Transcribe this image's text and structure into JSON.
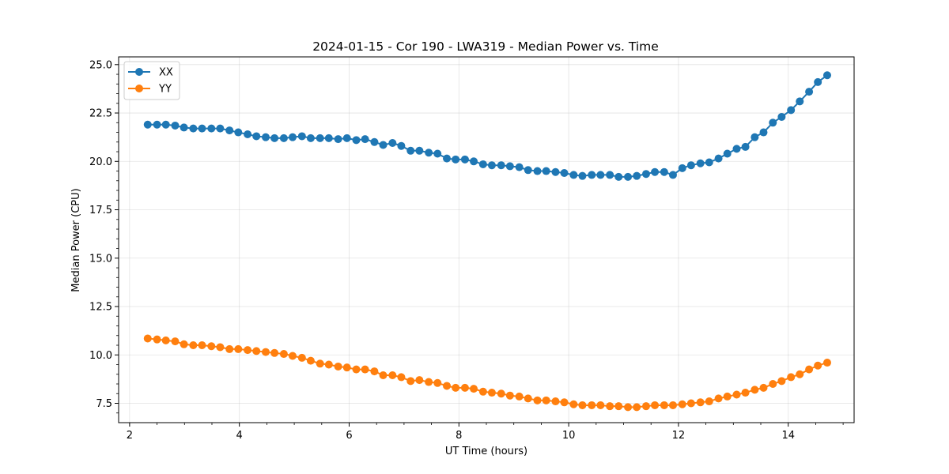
{
  "chart_data": {
    "type": "line",
    "title": "2024-01-15 - Cor 190 - LWA319 - Median Power vs. Time",
    "xlabel": "UT Time (hours)",
    "ylabel": "Median Power (CPU)",
    "xlim": [
      1.8,
      15.2
    ],
    "ylim": [
      6.5,
      25.4
    ],
    "xticks": [
      2,
      4,
      6,
      8,
      10,
      12,
      14
    ],
    "yticks": [
      7.5,
      10.0,
      12.5,
      15.0,
      17.5,
      20.0,
      22.5,
      25.0
    ],
    "xtick_labels": [
      "2",
      "4",
      "6",
      "8",
      "10",
      "12",
      "14"
    ],
    "ytick_labels": [
      "7.5",
      "10.0",
      "12.5",
      "15.0",
      "17.5",
      "20.0",
      "22.5",
      "25.0"
    ],
    "grid": true,
    "legend_position": "upper-left",
    "x": [
      2.33,
      2.5,
      2.66,
      2.83,
      2.99,
      3.16,
      3.32,
      3.49,
      3.65,
      3.82,
      3.98,
      4.15,
      4.31,
      4.48,
      4.64,
      4.81,
      4.97,
      5.14,
      5.3,
      5.47,
      5.63,
      5.8,
      5.96,
      6.13,
      6.29,
      6.46,
      6.62,
      6.79,
      6.95,
      7.12,
      7.28,
      7.45,
      7.61,
      7.78,
      7.94,
      8.11,
      8.27,
      8.44,
      8.6,
      8.77,
      8.93,
      9.1,
      9.26,
      9.43,
      9.59,
      9.76,
      9.92,
      10.09,
      10.25,
      10.42,
      10.58,
      10.75,
      10.91,
      11.08,
      11.24,
      11.41,
      11.57,
      11.74,
      11.9,
      12.07,
      12.23,
      12.4,
      12.56,
      12.73,
      12.89,
      13.06,
      13.22,
      13.39,
      13.55,
      13.72,
      13.88,
      14.05,
      14.21,
      14.38,
      14.54,
      14.71,
      14.87
    ],
    "series": [
      {
        "name": "XX",
        "color": "#1f77b4",
        "values": [
          21.9,
          21.9,
          21.9,
          21.85,
          21.75,
          21.7,
          21.7,
          21.7,
          21.7,
          21.6,
          21.5,
          21.4,
          21.3,
          21.25,
          21.2,
          21.2,
          21.25,
          21.3,
          21.2,
          21.2,
          21.2,
          21.15,
          21.2,
          21.1,
          21.15,
          21.0,
          20.85,
          20.95,
          20.8,
          20.55,
          20.55,
          20.45,
          20.4,
          20.15,
          20.1,
          20.1,
          20.0,
          19.85,
          19.8,
          19.8,
          19.75,
          19.7,
          19.55,
          19.5,
          19.5,
          19.45,
          19.4,
          19.3,
          19.25,
          19.3,
          19.3,
          19.3,
          19.2,
          19.2,
          19.25,
          19.35,
          19.45,
          19.45,
          19.3,
          19.65,
          19.8,
          19.9,
          19.95,
          20.15,
          20.4,
          20.65,
          20.75,
          21.25,
          21.5,
          22.0,
          22.3,
          22.65,
          23.1,
          23.6,
          24.1,
          24.45,
          null
        ]
      },
      {
        "name": "YY",
        "color": "#ff7f0e",
        "values": [
          10.85,
          10.8,
          10.75,
          10.7,
          10.55,
          10.5,
          10.5,
          10.45,
          10.4,
          10.3,
          10.3,
          10.25,
          10.2,
          10.15,
          10.1,
          10.05,
          9.95,
          9.85,
          9.7,
          9.55,
          9.5,
          9.4,
          9.35,
          9.25,
          9.25,
          9.15,
          8.95,
          8.95,
          8.85,
          8.65,
          8.7,
          8.6,
          8.55,
          8.4,
          8.3,
          8.3,
          8.25,
          8.1,
          8.05,
          8.0,
          7.9,
          7.85,
          7.75,
          7.65,
          7.65,
          7.6,
          7.55,
          7.45,
          7.4,
          7.4,
          7.4,
          7.35,
          7.35,
          7.3,
          7.3,
          7.35,
          7.4,
          7.4,
          7.4,
          7.45,
          7.5,
          7.55,
          7.6,
          7.75,
          7.85,
          7.95,
          8.05,
          8.2,
          8.3,
          8.5,
          8.65,
          8.85,
          9.0,
          9.25,
          9.45,
          9.6,
          null
        ]
      }
    ]
  }
}
